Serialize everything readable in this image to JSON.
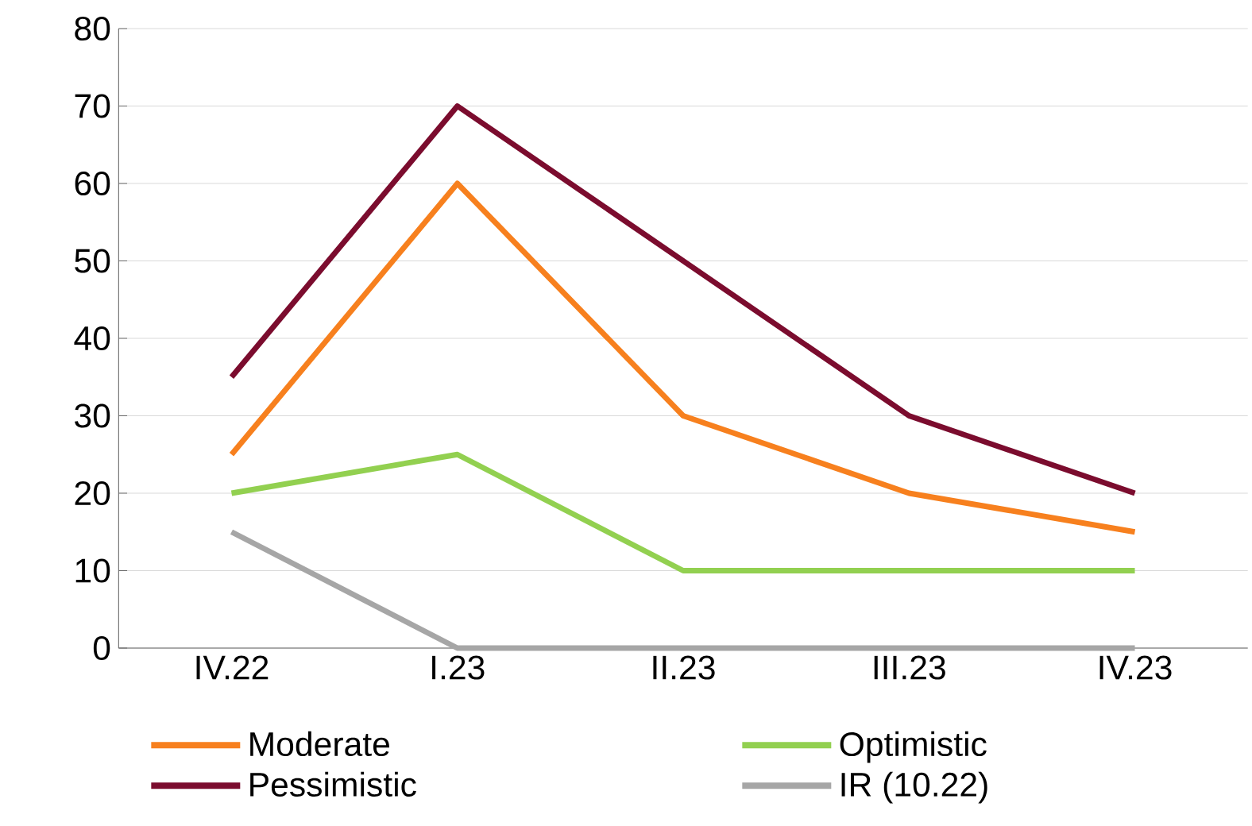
{
  "chart_data": {
    "type": "line",
    "categories": [
      "IV.22",
      "I.23",
      "II.23",
      "III.23",
      "IV.23"
    ],
    "series": [
      {
        "name": "Moderate",
        "color": "#f7801e",
        "values": [
          25,
          60,
          30,
          20,
          15
        ]
      },
      {
        "name": "Optimistic",
        "color": "#92d050",
        "values": [
          20,
          25,
          10,
          10,
          10
        ]
      },
      {
        "name": "Pessimistic",
        "color": "#7b0c2e",
        "values": [
          35,
          70,
          50,
          30,
          20
        ]
      },
      {
        "name": "IR (10.22)",
        "color": "#a6a6a6",
        "values": [
          15,
          0,
          0,
          0,
          0
        ]
      }
    ],
    "ylim": [
      0,
      80
    ],
    "yticks": [
      0,
      10,
      20,
      30,
      40,
      50,
      60,
      70,
      80
    ],
    "grid": "y",
    "legend": "bottom",
    "marker": "none",
    "line_style": "solid"
  }
}
